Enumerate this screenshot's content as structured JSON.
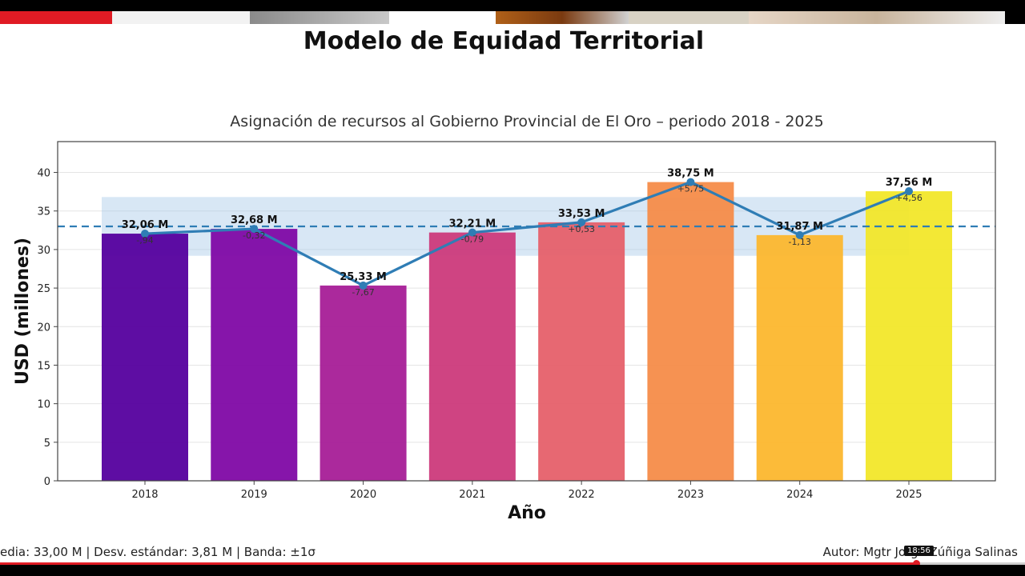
{
  "slide": {
    "title": "Modelo de Equidad Territorial",
    "footer_left": "edia: 33,00 M | Desv. estándar: 3,81 M | Banda: ±1σ",
    "footer_right": "Autor: Mgtr Jorge Zúñiga Salinas",
    "timestamp": "18:56"
  },
  "video": {
    "progress": 0.894,
    "accent": "#e01b24"
  },
  "chart_data": {
    "type": "bar",
    "title": "Asignación de recursos al Gobierno Provincial de El Oro – periodo 2018 - 2025",
    "xlabel": "Año",
    "ylabel": "USD (millones)",
    "ylim": [
      0,
      44
    ],
    "yticks": [
      "0",
      "5",
      "10",
      "15",
      "20",
      "25",
      "30",
      "35",
      "40"
    ],
    "categories": [
      "2018",
      "2019",
      "2020",
      "2021",
      "2022",
      "2023",
      "2024",
      "2025"
    ],
    "values": [
      32.06,
      32.68,
      25.33,
      32.21,
      33.53,
      38.75,
      31.87,
      37.56
    ],
    "value_labels": [
      "32,06 M",
      "32,68 M",
      "25,33 M",
      "32,21 M",
      "33,53 M",
      "38,75 M",
      "31,87 M",
      "37,56 M"
    ],
    "deviation_labels": [
      "-,94",
      "-0,32",
      "-7,67",
      "-0,79",
      "+0,53",
      "+5,75",
      "-1,13",
      "+4,56"
    ],
    "bar_colors": [
      "#55009e",
      "#8008a5",
      "#a61e97",
      "#cc3a7b",
      "#e6606a",
      "#f58c49",
      "#fcb72e",
      "#f2e72a"
    ],
    "mean": 33.0,
    "std": 3.81,
    "grid": true,
    "line_color": "#2f7db5",
    "band_color": "#a9c9e8"
  }
}
